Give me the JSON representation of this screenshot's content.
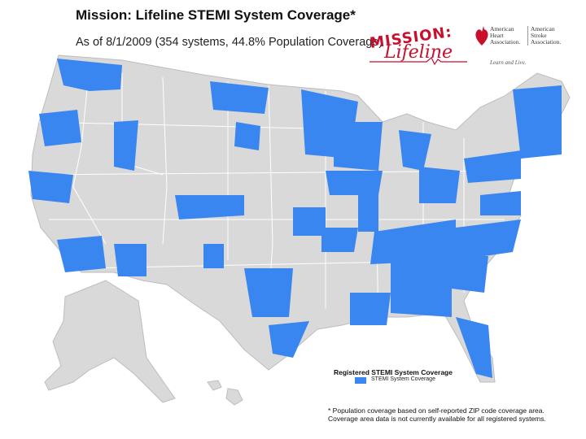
{
  "slide": {
    "title": "Mission: Lifeline STEMI System Coverage*",
    "subtitle": "As of 8/1/2009 (354 systems, 44.8% Population Coverage)"
  },
  "logos": {
    "mission_lifeline_top": "MISSION:",
    "mission_lifeline_bottom": "Lifeline",
    "aha_name": "American Heart Association.",
    "asa_name": "American Stroke Association.",
    "aha_tagline": "Learn and Live."
  },
  "legend": {
    "title": "Registered STEMI System Coverage",
    "item_label": "STEMI System Coverage",
    "item_color": "#3a86f0"
  },
  "footnote": {
    "line1": "* Population coverage based on self-reported ZIP code coverage area.",
    "line2": "Coverage area data is not currently available for all registered systems."
  },
  "colors": {
    "land": "#d9d9d9",
    "border": "#ffffff",
    "coverage": "#3a86f0",
    "brand_red": "#c8102e"
  }
}
